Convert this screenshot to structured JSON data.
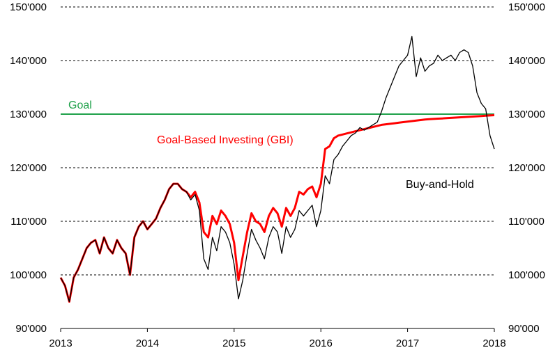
{
  "chart_data": {
    "type": "line",
    "x_ticks": [
      "2013",
      "2014",
      "2015",
      "2016",
      "2017",
      "2018"
    ],
    "y_ticks": [
      "90'000",
      "100'000",
      "110'000",
      "120'000",
      "130'000",
      "140'000",
      "150'000"
    ],
    "y_tick_values": [
      90000,
      100000,
      110000,
      120000,
      130000,
      140000,
      150000
    ],
    "xlim": [
      2013,
      2018
    ],
    "ylim": [
      90000,
      150000
    ],
    "grid": "horizontal-dashed",
    "annotations": {
      "goal": "Goal",
      "gbi": "Goal-Based Investing (GBI)",
      "bah": "Buy-and-Hold"
    },
    "colors": {
      "goal": "#1fa14a",
      "gbi": "#ff0000",
      "bah": "#000000"
    },
    "series": [
      {
        "key": "bah",
        "x": [
          2013.0,
          2013.05,
          2013.1,
          2013.15,
          2013.2,
          2013.25,
          2013.3,
          2013.35,
          2013.4,
          2013.45,
          2013.5,
          2013.55,
          2013.6,
          2013.65,
          2013.7,
          2013.75,
          2013.8,
          2013.85,
          2013.9,
          2013.95,
          2014.0,
          2014.05,
          2014.1,
          2014.15,
          2014.2,
          2014.25,
          2014.3,
          2014.35,
          2014.4,
          2014.45,
          2014.5,
          2014.55,
          2014.6,
          2014.65,
          2014.7,
          2014.75,
          2014.8,
          2014.85,
          2014.9,
          2014.95,
          2015.0,
          2015.05,
          2015.1,
          2015.15,
          2015.2,
          2015.25,
          2015.3,
          2015.35,
          2015.4,
          2015.45,
          2015.5,
          2015.55,
          2015.6,
          2015.65,
          2015.7,
          2015.75,
          2015.8,
          2015.85,
          2015.9,
          2015.95,
          2016.0,
          2016.05,
          2016.1,
          2016.15,
          2016.2,
          2016.25,
          2016.3,
          2016.35,
          2016.4,
          2016.45,
          2016.5,
          2016.55,
          2016.6,
          2016.65,
          2016.7,
          2016.75,
          2016.8,
          2016.85,
          2016.9,
          2016.95,
          2017.0,
          2017.05,
          2017.1,
          2017.15,
          2017.2,
          2017.25,
          2017.3,
          2017.35,
          2017.4,
          2017.45,
          2017.5,
          2017.55,
          2017.6,
          2017.65,
          2017.7,
          2017.75,
          2017.8,
          2017.85,
          2017.9,
          2017.95,
          2018.0
        ],
        "values": [
          99500,
          98000,
          95000,
          99500,
          101000,
          103000,
          105000,
          106000,
          106500,
          104000,
          107000,
          105000,
          104000,
          106500,
          105000,
          104000,
          100000,
          107000,
          109000,
          110000,
          108500,
          109500,
          110500,
          112500,
          114000,
          116000,
          117000,
          117000,
          116000,
          115500,
          114000,
          115000,
          112000,
          103000,
          101000,
          107000,
          104500,
          109000,
          108000,
          106000,
          102000,
          95500,
          99000,
          104000,
          108500,
          106500,
          105000,
          103000,
          107000,
          109000,
          108000,
          104000,
          109000,
          107000,
          108500,
          112000,
          111000,
          112000,
          113000,
          109000,
          112000,
          118500,
          117000,
          121500,
          122500,
          124000,
          125000,
          126000,
          126500,
          127500,
          127000,
          127500,
          128000,
          128500,
          130500,
          133000,
          135000,
          137000,
          139000,
          140000,
          141000,
          144500,
          137000,
          140500,
          138000,
          139000,
          139500,
          141000,
          140000,
          140500,
          141000,
          140000,
          141500,
          142000,
          141500,
          139000,
          134000,
          132000,
          131000,
          126000,
          123500
        ]
      },
      {
        "key": "gbi",
        "x": [
          2013.0,
          2013.05,
          2013.1,
          2013.15,
          2013.2,
          2013.25,
          2013.3,
          2013.35,
          2013.4,
          2013.45,
          2013.5,
          2013.55,
          2013.6,
          2013.65,
          2013.7,
          2013.75,
          2013.8,
          2013.85,
          2013.9,
          2013.95,
          2014.0,
          2014.05,
          2014.1,
          2014.15,
          2014.2,
          2014.25,
          2014.3,
          2014.35,
          2014.4,
          2014.45,
          2014.5,
          2014.55,
          2014.6,
          2014.65,
          2014.7,
          2014.75,
          2014.8,
          2014.85,
          2014.9,
          2014.95,
          2015.0,
          2015.05,
          2015.1,
          2015.15,
          2015.2,
          2015.25,
          2015.3,
          2015.35,
          2015.4,
          2015.45,
          2015.5,
          2015.55,
          2015.6,
          2015.65,
          2015.7,
          2015.75,
          2015.8,
          2015.85,
          2015.9,
          2015.95,
          2016.0,
          2016.05,
          2016.1,
          2016.15,
          2016.2,
          2016.25,
          2016.3,
          2016.35,
          2016.4,
          2016.45,
          2016.5,
          2016.55,
          2016.6,
          2016.65,
          2016.7,
          2016.75,
          2016.8,
          2016.85,
          2016.9,
          2016.95,
          2017.0,
          2017.05,
          2017.1,
          2017.15,
          2017.2,
          2017.25,
          2017.3,
          2017.35,
          2017.4,
          2017.45,
          2017.5,
          2017.55,
          2017.6,
          2017.65,
          2017.7,
          2017.75,
          2017.8,
          2017.85,
          2017.9,
          2017.95,
          2018.0
        ],
        "values": [
          99500,
          98000,
          95000,
          99500,
          101000,
          103000,
          105000,
          106000,
          106500,
          104000,
          107000,
          105000,
          104000,
          106500,
          105000,
          104000,
          100000,
          107000,
          109000,
          110000,
          108500,
          109500,
          110500,
          112500,
          114000,
          116000,
          117000,
          117000,
          116000,
          115500,
          114500,
          115500,
          113500,
          108000,
          107000,
          111000,
          109500,
          112000,
          111000,
          109500,
          106000,
          99000,
          103500,
          108000,
          111500,
          110000,
          109500,
          108000,
          111000,
          112500,
          111500,
          109000,
          112500,
          111000,
          112500,
          115500,
          115000,
          116000,
          116500,
          114500,
          117000,
          123500,
          124000,
          125500,
          126000,
          126200,
          126400,
          126600,
          126800,
          127000,
          127200,
          127400,
          127600,
          127800,
          128000,
          128100,
          128200,
          128300,
          128400,
          128500,
          128600,
          128700,
          128800,
          128900,
          129000,
          129050,
          129100,
          129150,
          129200,
          129250,
          129300,
          129350,
          129400,
          129450,
          129500,
          129550,
          129600,
          129650,
          129700,
          129750,
          129800
        ]
      }
    ],
    "goal_value": 130000
  }
}
